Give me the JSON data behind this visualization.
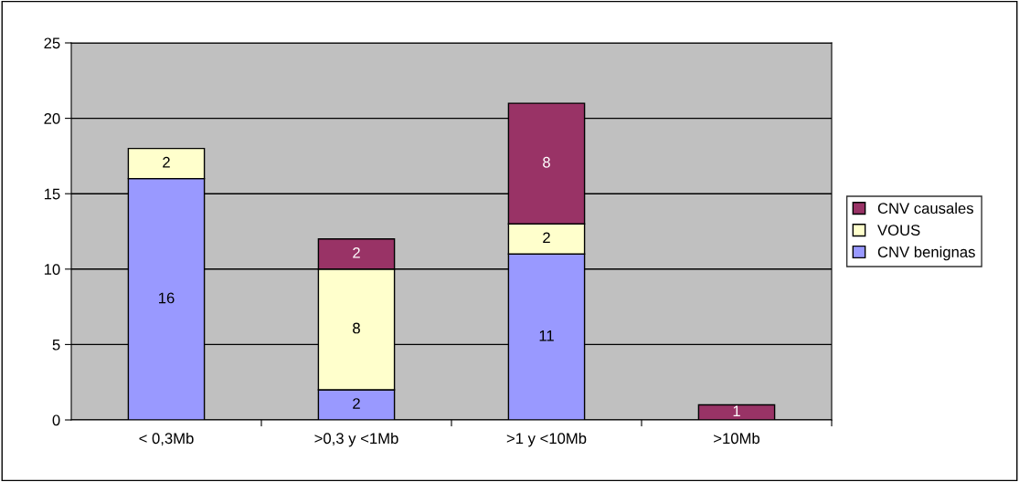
{
  "chart_data": {
    "type": "bar",
    "stacked": true,
    "categories": [
      "< 0,3Mb",
      ">0,3 y <1Mb",
      ">1 y <10Mb",
      ">10Mb"
    ],
    "series": [
      {
        "name": "CNV benignas",
        "color": "#9999ff",
        "values": [
          16,
          2,
          11,
          null
        ]
      },
      {
        "name": "VOUS",
        "color": "#ffffcc",
        "values": [
          2,
          8,
          2,
          null
        ]
      },
      {
        "name": "CNV causales",
        "color": "#993366",
        "values": [
          null,
          2,
          8,
          1
        ]
      }
    ],
    "ylim": [
      0,
      25
    ],
    "yticks": [
      0,
      5,
      10,
      15,
      20,
      25
    ],
    "grid": "y",
    "legend": "right",
    "data_labels": true
  }
}
